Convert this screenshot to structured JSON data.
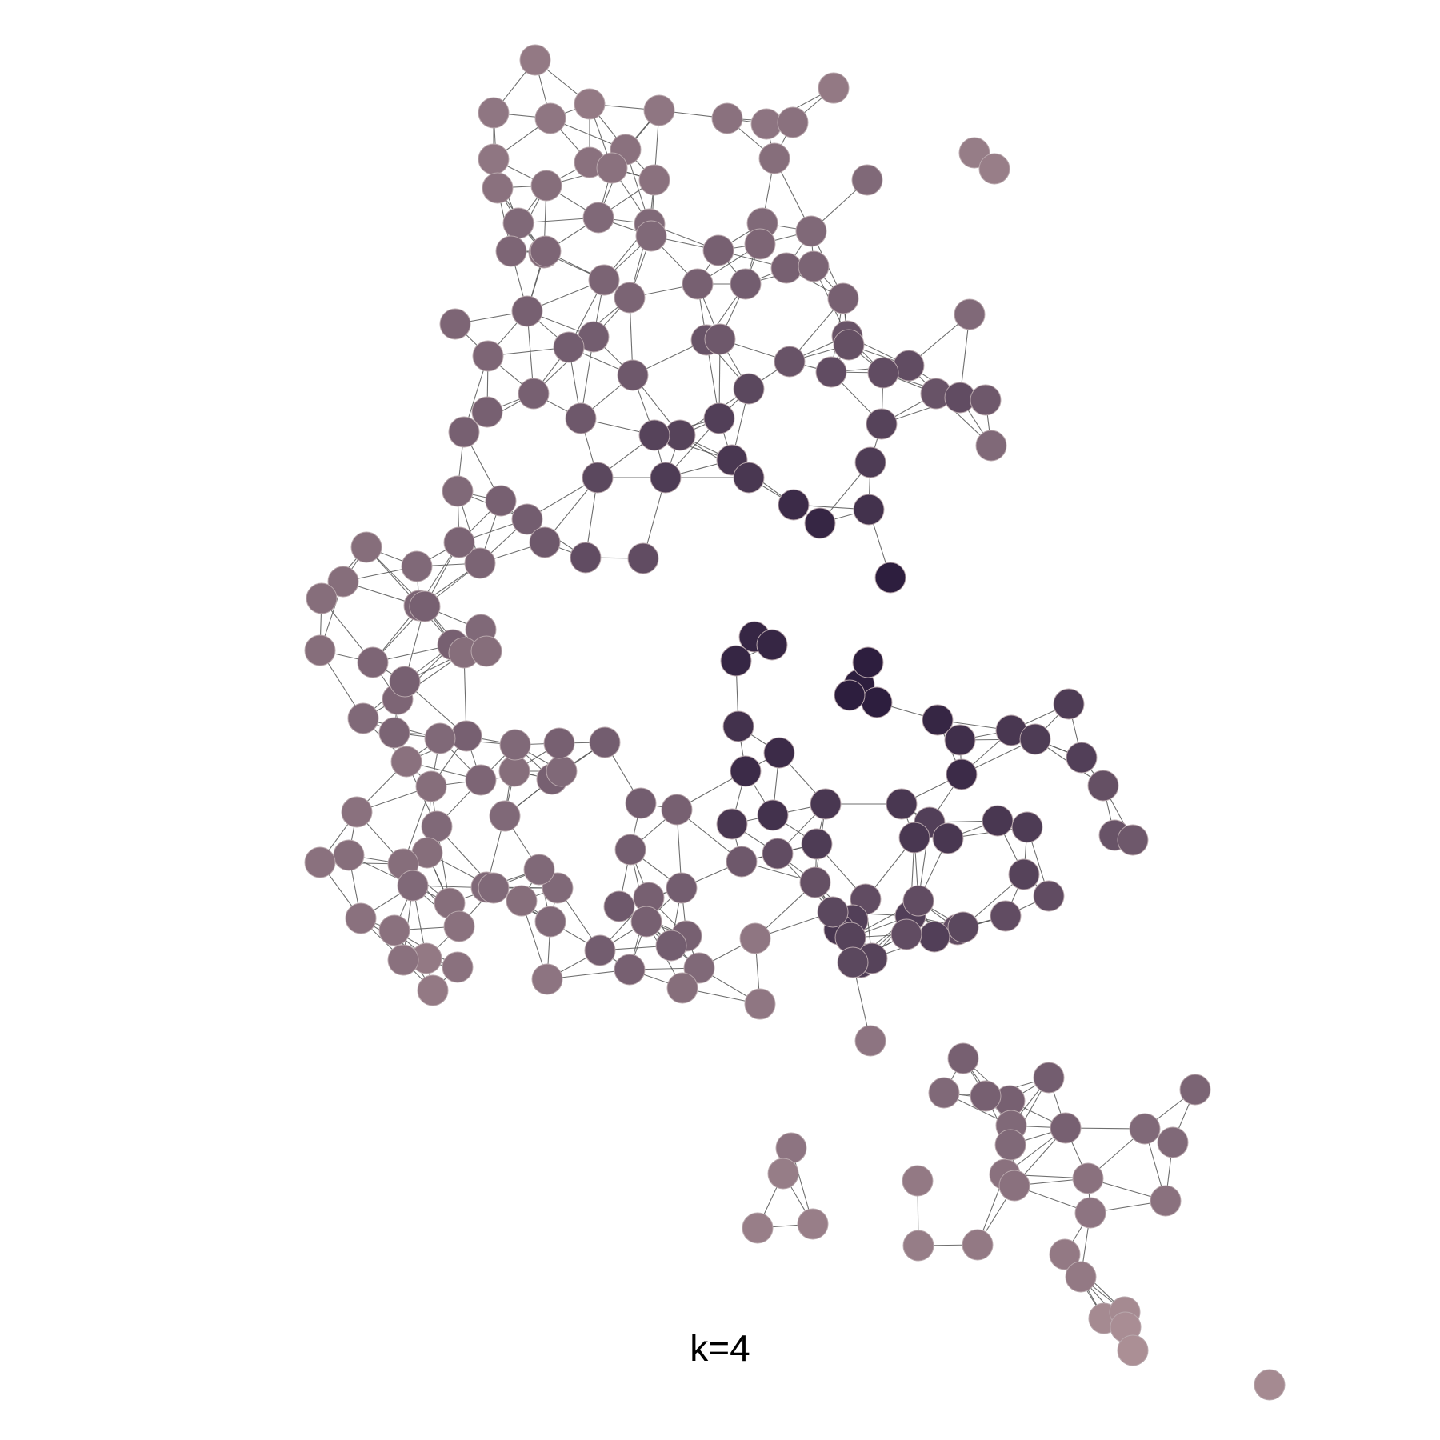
{
  "caption": "k=4",
  "palette": {
    "edge": "#555555",
    "background": "#ffffff",
    "node_light": "#e6c4be",
    "node_dark": "#2d1e3e"
  },
  "legend": "none"
}
